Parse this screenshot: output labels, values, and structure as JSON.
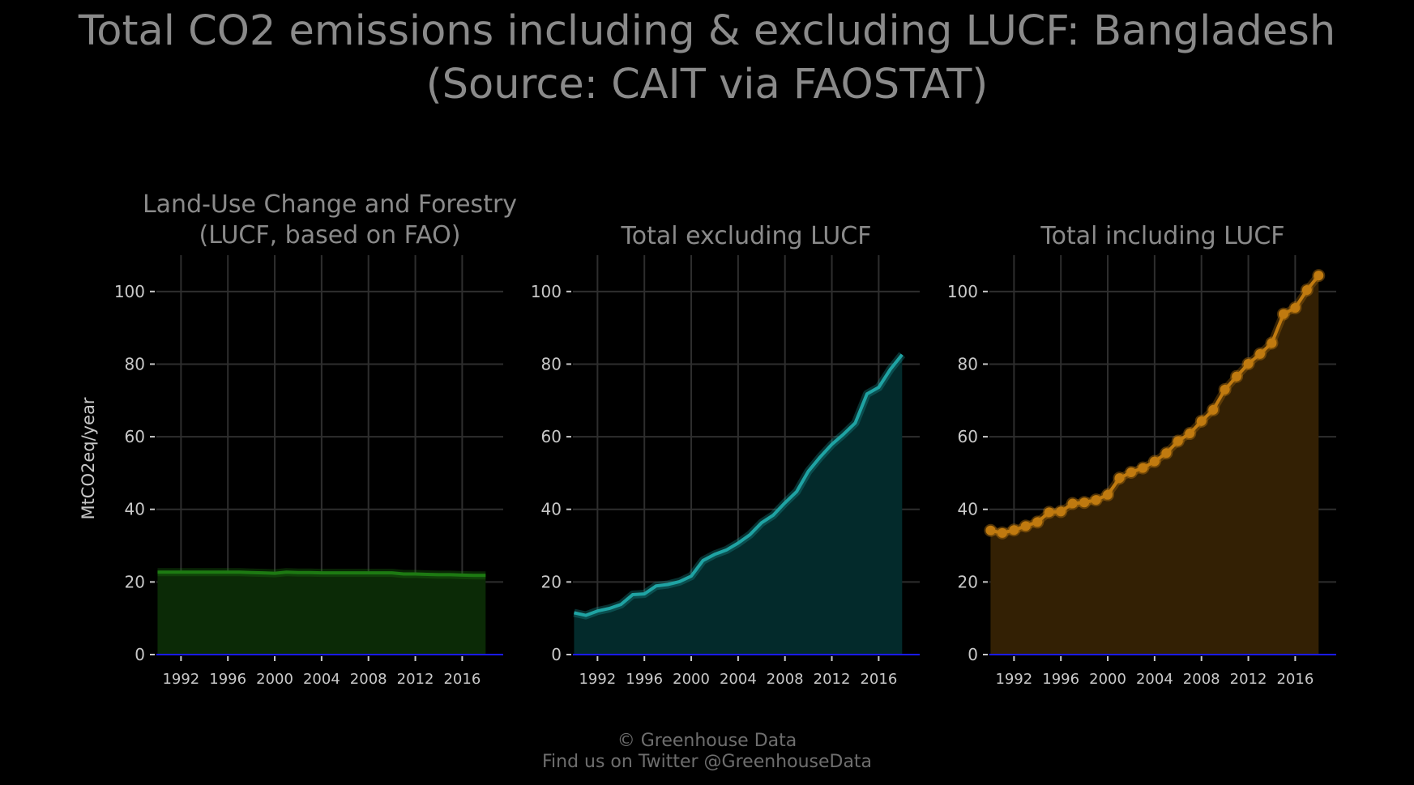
{
  "title_line1": "Total CO2 emissions including & excluding LUCF: Bangladesh",
  "title_line2": "(Source: CAIT via FAOSTAT)",
  "footer_line1": "© Greenhouse Data",
  "footer_line2": "Find us on Twitter @GreenhouseData",
  "ylabel": "MtCO2eq/year",
  "colors": {
    "background": "#000000",
    "grid": "#2e2e2e",
    "zero_line": "#1a1aff"
  },
  "chart_data": [
    {
      "type": "area",
      "title_lines": [
        "Land-Use Change and Forestry",
        "(LUCF, based on FAO)"
      ],
      "color": "#1d7a12",
      "fill": "#0b2a06",
      "markers": false,
      "x": [
        1990,
        1991,
        1992,
        1993,
        1994,
        1995,
        1996,
        1997,
        1998,
        1999,
        2000,
        2001,
        2002,
        2003,
        2004,
        2005,
        2006,
        2007,
        2008,
        2009,
        2010,
        2011,
        2012,
        2013,
        2014,
        2015,
        2016,
        2017,
        2018
      ],
      "y": [
        22.7,
        22.7,
        22.7,
        22.7,
        22.7,
        22.7,
        22.7,
        22.7,
        22.6,
        22.5,
        22.4,
        22.7,
        22.6,
        22.6,
        22.5,
        22.5,
        22.5,
        22.5,
        22.5,
        22.5,
        22.5,
        22.2,
        22.2,
        22.1,
        22.0,
        22.0,
        21.9,
        21.8,
        21.8
      ],
      "ylim": [
        0,
        110
      ],
      "xlim": [
        1989.9,
        2019.5
      ],
      "yticks": [
        0,
        20,
        40,
        60,
        80,
        100
      ],
      "xticks": [
        1992,
        1996,
        2000,
        2004,
        2008,
        2012,
        2016
      ],
      "show_ylabel": true
    },
    {
      "type": "area",
      "title_lines": [
        "Total excluding LUCF"
      ],
      "color": "#1fa3a3",
      "fill": "#032a2b",
      "markers": false,
      "x": [
        1990,
        1991,
        1992,
        1993,
        1994,
        1995,
        1996,
        1997,
        1998,
        1999,
        2000,
        2001,
        2002,
        2003,
        2004,
        2005,
        2006,
        2007,
        2008,
        2009,
        2010,
        2011,
        2012,
        2013,
        2014,
        2015,
        2016,
        2017,
        2018
      ],
      "y": [
        11.5,
        10.8,
        12.0,
        12.7,
        13.8,
        16.5,
        16.7,
        18.9,
        19.3,
        20.1,
        21.6,
        25.9,
        27.6,
        28.8,
        30.7,
        33.0,
        36.3,
        38.4,
        41.8,
        44.9,
        50.5,
        54.4,
        57.9,
        60.7,
        63.8,
        71.8,
        73.6,
        78.6,
        82.6
      ],
      "ylim": [
        0,
        110
      ],
      "xlim": [
        1989.9,
        2019.5
      ],
      "yticks": [
        0,
        20,
        40,
        60,
        80,
        100
      ],
      "xticks": [
        1992,
        1996,
        2000,
        2004,
        2008,
        2012,
        2016
      ],
      "show_ylabel": false
    },
    {
      "type": "area",
      "title_lines": [
        "Total including LUCF"
      ],
      "color": "#c07a10",
      "fill": "#332004",
      "markers": true,
      "x": [
        1990,
        1991,
        1992,
        1993,
        1994,
        1995,
        1996,
        1997,
        1998,
        1999,
        2000,
        2001,
        2002,
        2003,
        2004,
        2005,
        2006,
        2007,
        2008,
        2009,
        2010,
        2011,
        2012,
        2013,
        2014,
        2015,
        2016,
        2017,
        2018
      ],
      "y": [
        34.2,
        33.5,
        34.3,
        35.4,
        36.5,
        39.2,
        39.4,
        41.6,
        41.9,
        42.6,
        44.0,
        48.6,
        50.2,
        51.4,
        53.2,
        55.5,
        58.8,
        60.9,
        64.3,
        67.4,
        73.0,
        76.6,
        80.1,
        82.8,
        85.8,
        93.8,
        95.5,
        100.4,
        104.4
      ],
      "ylim": [
        0,
        110
      ],
      "xlim": [
        1989.9,
        2019.5
      ],
      "yticks": [
        0,
        20,
        40,
        60,
        80,
        100
      ],
      "xticks": [
        1992,
        1996,
        2000,
        2004,
        2008,
        2012,
        2016
      ],
      "show_ylabel": false
    }
  ]
}
